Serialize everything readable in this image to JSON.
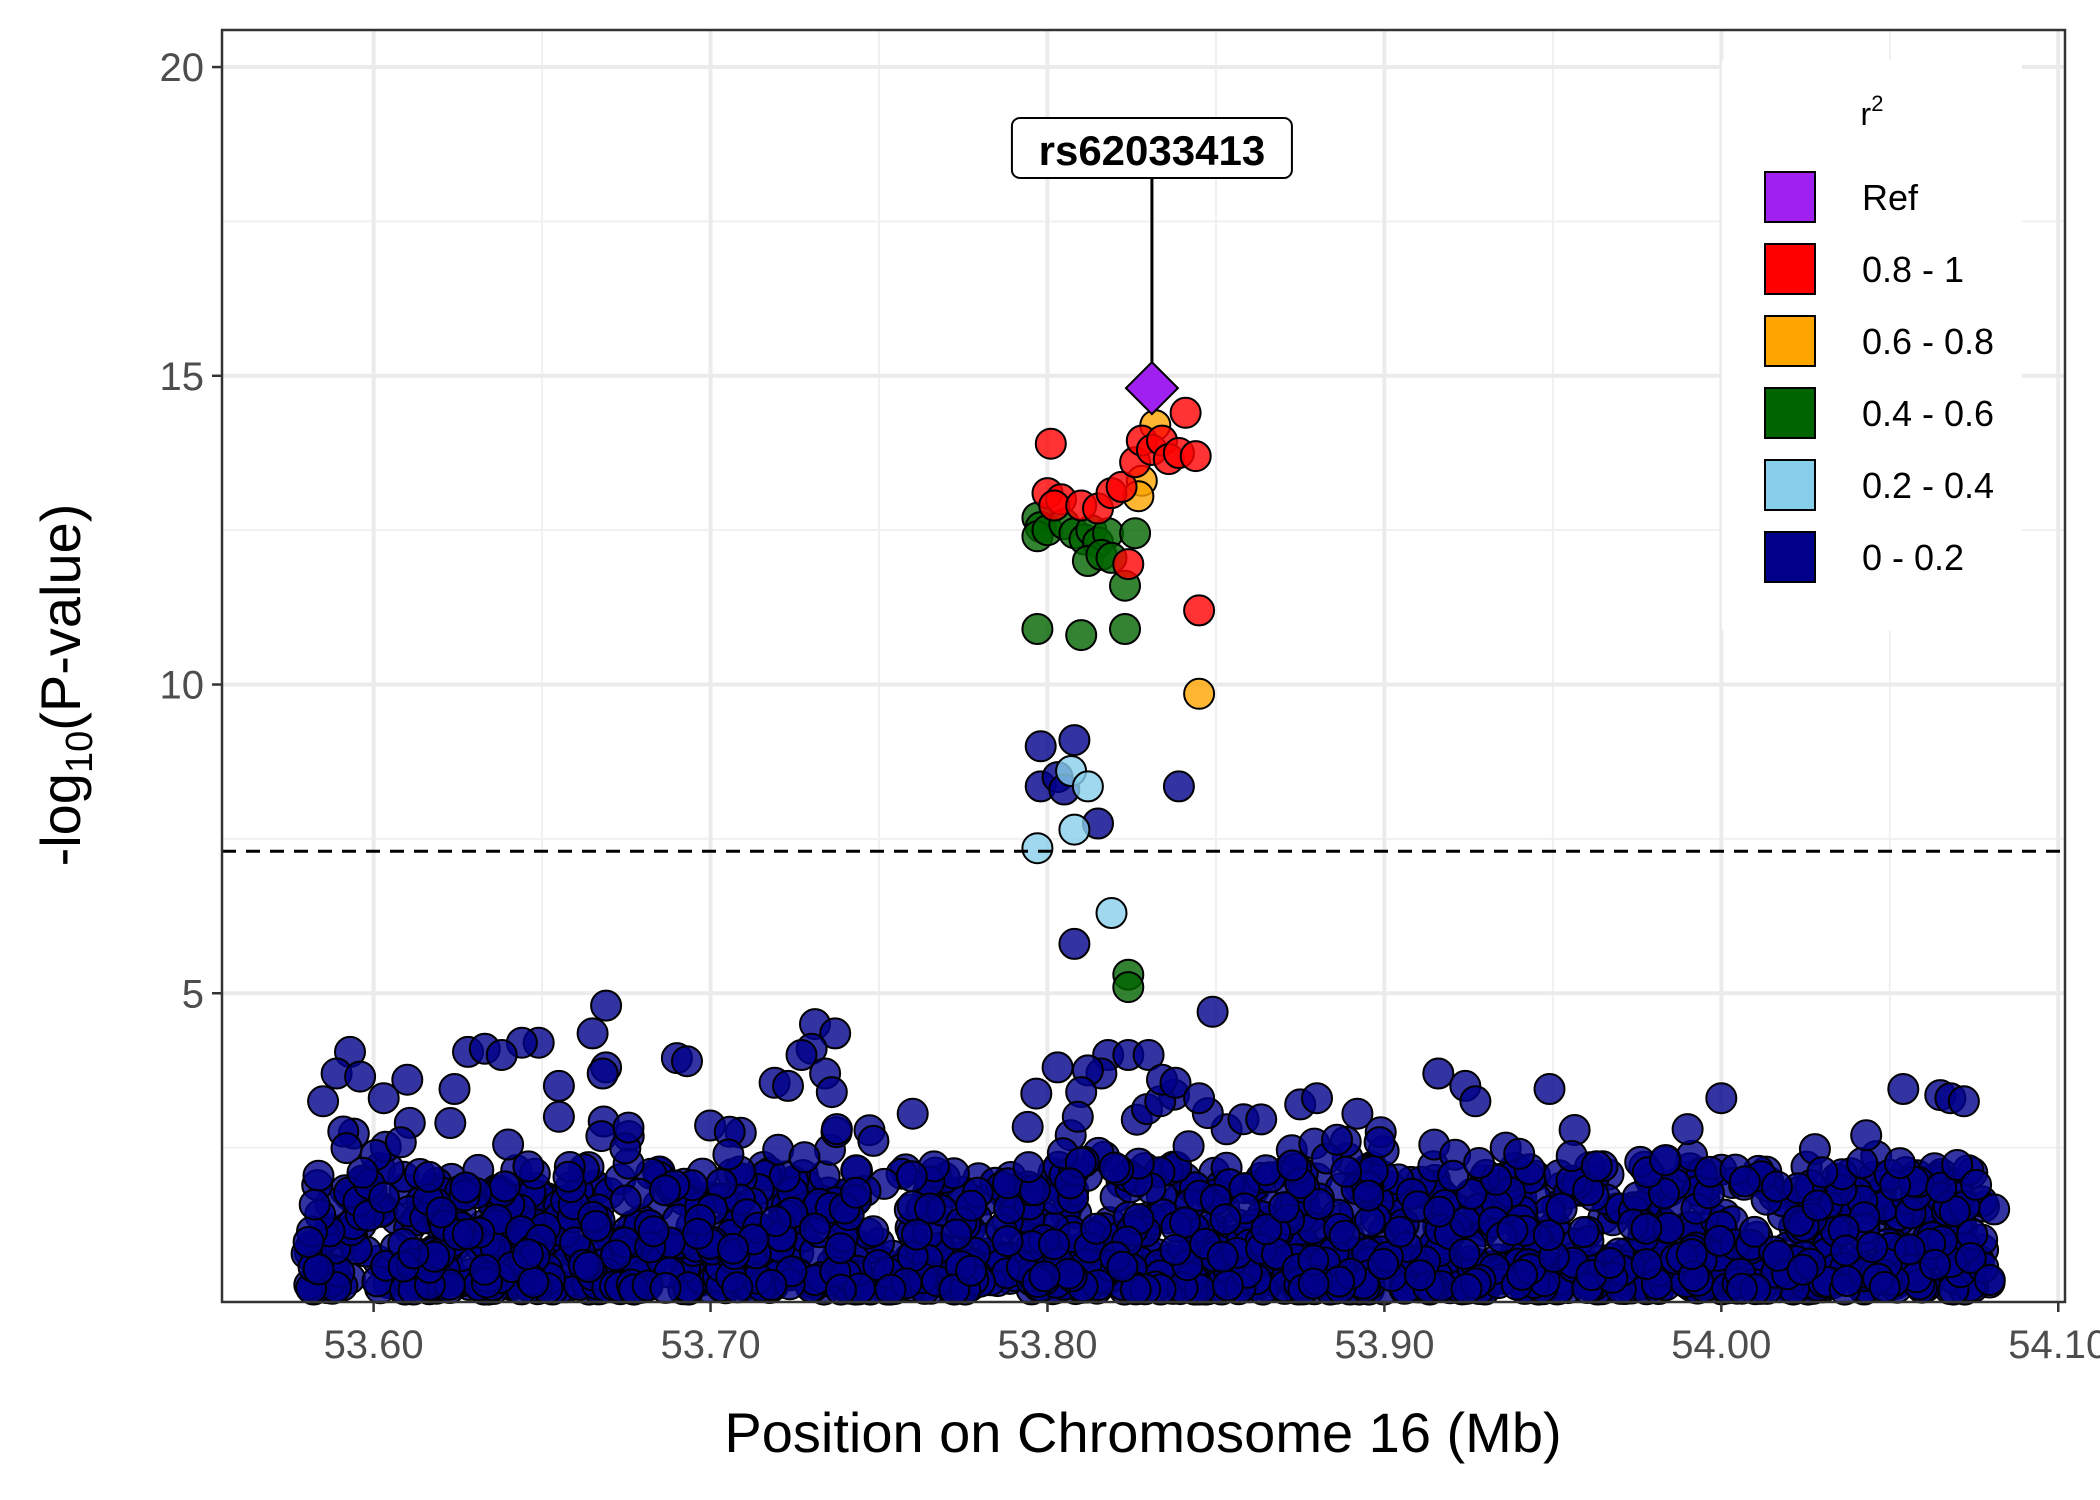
{
  "chart_data": {
    "type": "scatter",
    "title": "",
    "xlabel": "Position on Chromosome 16 (Mb)",
    "ylabel": "-log10(P-value)",
    "ylabel_parts": {
      "prefix": "-log",
      "subscript": "10",
      "suffix": "(P-value)"
    },
    "xlim": [
      53.555,
      54.102
    ],
    "ylim": [
      0,
      20.6
    ],
    "x_ticks": [
      53.6,
      53.7,
      53.8,
      53.9,
      54.0,
      54.1
    ],
    "x_tick_labels": [
      "53.60",
      "53.70",
      "53.80",
      "53.90",
      "54.00",
      "54.10"
    ],
    "y_ticks": [
      5,
      10,
      15,
      20
    ],
    "y_tick_labels": [
      "5",
      "10",
      "15",
      "20"
    ],
    "grid": true,
    "significance_threshold": 7.3,
    "legend": {
      "title": "r",
      "title_superscript": "2",
      "position": "top-right",
      "entries": [
        {
          "label": "Ref",
          "color": "#A020F0"
        },
        {
          "label": "0.8 - 1",
          "color": "#FF0000"
        },
        {
          "label": "0.6 - 0.8",
          "color": "#FFA500"
        },
        {
          "label": "0.4 - 0.6",
          "color": "#006400"
        },
        {
          "label": "0.2 - 0.4",
          "color": "#87CEEB"
        },
        {
          "label": "0 - 0.2",
          "color": "#00008B"
        }
      ]
    },
    "lead_snp": {
      "label": "rs62033413",
      "x": 53.831,
      "y": 14.8,
      "color": "#A020F0"
    },
    "series": [
      {
        "name": "0.8 - 1",
        "color": "#FF0000",
        "points": [
          [
            53.801,
            13.9
          ],
          [
            53.8,
            13.1
          ],
          [
            53.804,
            13.0
          ],
          [
            53.802,
            12.9
          ],
          [
            53.81,
            12.9
          ],
          [
            53.815,
            12.85
          ],
          [
            53.819,
            13.1
          ],
          [
            53.822,
            13.2
          ],
          [
            53.826,
            13.6
          ],
          [
            53.828,
            13.95
          ],
          [
            53.831,
            13.8
          ],
          [
            53.834,
            13.95
          ],
          [
            53.836,
            13.65
          ],
          [
            53.839,
            13.75
          ],
          [
            53.844,
            13.7
          ],
          [
            53.841,
            14.4
          ],
          [
            53.824,
            11.95
          ],
          [
            53.845,
            11.2
          ]
        ]
      },
      {
        "name": "0.6 - 0.8",
        "color": "#FFA500",
        "points": [
          [
            53.832,
            14.2
          ],
          [
            53.828,
            13.3
          ],
          [
            53.827,
            13.05
          ],
          [
            53.845,
            9.85
          ]
        ]
      },
      {
        "name": "0.4 - 0.6",
        "color": "#006400",
        "points": [
          [
            53.797,
            12.7
          ],
          [
            53.798,
            12.55
          ],
          [
            53.797,
            12.4
          ],
          [
            53.8,
            12.5
          ],
          [
            53.805,
            12.6
          ],
          [
            53.808,
            12.45
          ],
          [
            53.811,
            12.35
          ],
          [
            53.813,
            12.5
          ],
          [
            53.815,
            12.3
          ],
          [
            53.818,
            12.45
          ],
          [
            53.812,
            12.0
          ],
          [
            53.816,
            12.1
          ],
          [
            53.819,
            12.05
          ],
          [
            53.823,
            11.6
          ],
          [
            53.826,
            12.45
          ],
          [
            53.797,
            10.9
          ],
          [
            53.81,
            10.8
          ],
          [
            53.823,
            10.9
          ],
          [
            53.824,
            5.3
          ],
          [
            53.824,
            5.1
          ]
        ]
      },
      {
        "name": "0.2 - 0.4",
        "color": "#87CEEB",
        "points": [
          [
            53.807,
            8.6
          ],
          [
            53.812,
            8.35
          ],
          [
            53.808,
            7.65
          ],
          [
            53.797,
            7.35
          ],
          [
            53.819,
            6.3
          ]
        ]
      },
      {
        "name": "0 - 0.2",
        "color": "#00008B",
        "points": [
          [
            53.798,
            9.0
          ],
          [
            53.808,
            9.1
          ],
          [
            53.798,
            8.35
          ],
          [
            53.803,
            8.5
          ],
          [
            53.805,
            8.3
          ],
          [
            53.839,
            8.35
          ],
          [
            53.815,
            7.75
          ],
          [
            53.808,
            5.8
          ],
          [
            53.849,
            4.7
          ],
          [
            53.669,
            4.8
          ],
          [
            53.665,
            4.35
          ],
          [
            53.731,
            4.5
          ],
          [
            53.737,
            4.35
          ],
          [
            53.73,
            4.1
          ],
          [
            53.727,
            4.0
          ],
          [
            53.734,
            3.7
          ],
          [
            53.736,
            3.4
          ],
          [
            53.649,
            4.2
          ],
          [
            53.644,
            4.2
          ],
          [
            53.628,
            4.05
          ],
          [
            53.633,
            4.1
          ],
          [
            53.638,
            4.0
          ],
          [
            53.593,
            4.05
          ],
          [
            53.669,
            3.8
          ],
          [
            53.668,
            3.7
          ],
          [
            53.69,
            3.95
          ],
          [
            53.693,
            3.9
          ],
          [
            53.719,
            3.55
          ],
          [
            53.723,
            3.5
          ],
          [
            53.803,
            3.8
          ],
          [
            53.818,
            4.0
          ],
          [
            53.824,
            4.0
          ],
          [
            53.83,
            4.0
          ],
          [
            53.834,
            3.6
          ],
          [
            53.838,
            3.55
          ],
          [
            53.816,
            3.7
          ],
          [
            53.812,
            3.75
          ],
          [
            53.916,
            3.7
          ],
          [
            53.924,
            3.5
          ],
          [
            53.927,
            3.25
          ],
          [
            53.949,
            3.45
          ],
          [
            54.0,
            3.3
          ],
          [
            54.054,
            3.45
          ],
          [
            54.065,
            3.35
          ],
          [
            54.068,
            3.3
          ],
          [
            54.072,
            3.25
          ],
          [
            53.585,
            3.25
          ],
          [
            53.589,
            3.7
          ],
          [
            53.596,
            3.65
          ],
          [
            53.603,
            3.3
          ],
          [
            53.61,
            3.6
          ],
          [
            53.655,
            3.5
          ],
          [
            53.624,
            3.45
          ],
          [
            53.81,
            3.4
          ],
          [
            53.809,
            3.0
          ],
          [
            53.845,
            3.3
          ],
          [
            53.875,
            3.2
          ],
          [
            53.88,
            3.3
          ],
          [
            53.892,
            3.05
          ],
          [
            53.936,
            2.5
          ],
          [
            53.94,
            2.4
          ],
          [
            53.963,
            2.2
          ],
          [
            53.99,
            2.8
          ],
          [
            54.03,
            2.1
          ],
          [
            54.043,
            2.7
          ],
          [
            54.053,
            2.25
          ],
          [
            54.081,
            1.5
          ],
          [
            53.76,
            3.05
          ],
          [
            53.655,
            3.0
          ]
        ]
      }
    ],
    "cluster_bands": [
      {
        "x0": 53.58,
        "x1": 54.08,
        "y_top": 2.0
      },
      {
        "x0": 53.58,
        "x1": 53.68,
        "y_top": 2.9
      },
      {
        "x0": 53.68,
        "x1": 53.78,
        "y_top": 2.7
      },
      {
        "x0": 53.78,
        "x1": 53.87,
        "y_top": 3.2
      },
      {
        "x0": 53.87,
        "x1": 53.97,
        "y_top": 2.6
      },
      {
        "x0": 53.97,
        "x1": 54.08,
        "y_top": 2.3
      }
    ],
    "background_color": "#00008B"
  }
}
